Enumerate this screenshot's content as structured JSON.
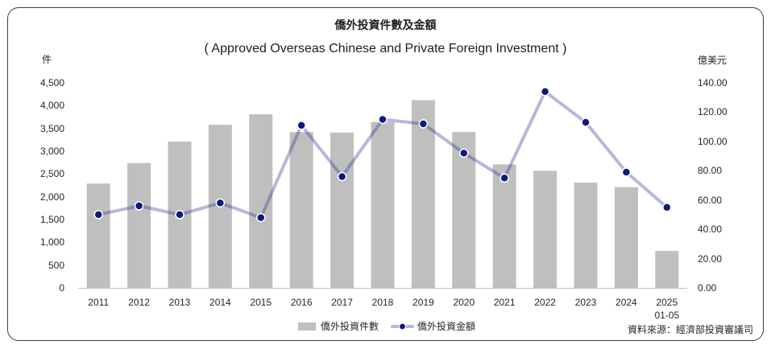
{
  "chart_data": {
    "type": "bar",
    "title": "僑外投資件數及金額",
    "subtitle": "( Approved Overseas Chinese and Private Foreign Investment )",
    "ylabel_left": "件",
    "ylabel_right": "億美元",
    "categories": [
      "2011",
      "2012",
      "2013",
      "2014",
      "2015",
      "2016",
      "2017",
      "2018",
      "2019",
      "2020",
      "2021",
      "2022",
      "2023",
      "2024",
      "2025\n01-05"
    ],
    "series": [
      {
        "name": "僑外投資件數",
        "type": "bar",
        "axis": "left",
        "color": "#bfbfbf",
        "values": [
          2290,
          2740,
          3210,
          3580,
          3810,
          3420,
          3410,
          3640,
          4120,
          3420,
          2710,
          2570,
          2310,
          2210,
          810
        ]
      },
      {
        "name": "僑外投資金額",
        "type": "line",
        "axis": "right",
        "color": "#2e3192",
        "marker_color": "#0d1a7a",
        "values": [
          50,
          56,
          50,
          58,
          48,
          111,
          76,
          115,
          112,
          92,
          75,
          134,
          113,
          79,
          55
        ]
      }
    ],
    "ylim_left": [
      0,
      4500
    ],
    "ylim_right": [
      0,
      140
    ],
    "yticks_left": [
      "0",
      "500",
      "1,000",
      "1,500",
      "2,000",
      "2,500",
      "3,000",
      "3,500",
      "4,000",
      "4,500"
    ],
    "yticks_right": [
      "0.00",
      "20.00",
      "40.00",
      "60.00",
      "80.00",
      "100.00",
      "120.00",
      "140.00"
    ],
    "grid": false,
    "legend": "bottom",
    "source": "資料來源：經濟部投資審議司"
  },
  "colors": {
    "frame_border": "#3c3c3c",
    "axis_line": "#bfbfbf"
  }
}
